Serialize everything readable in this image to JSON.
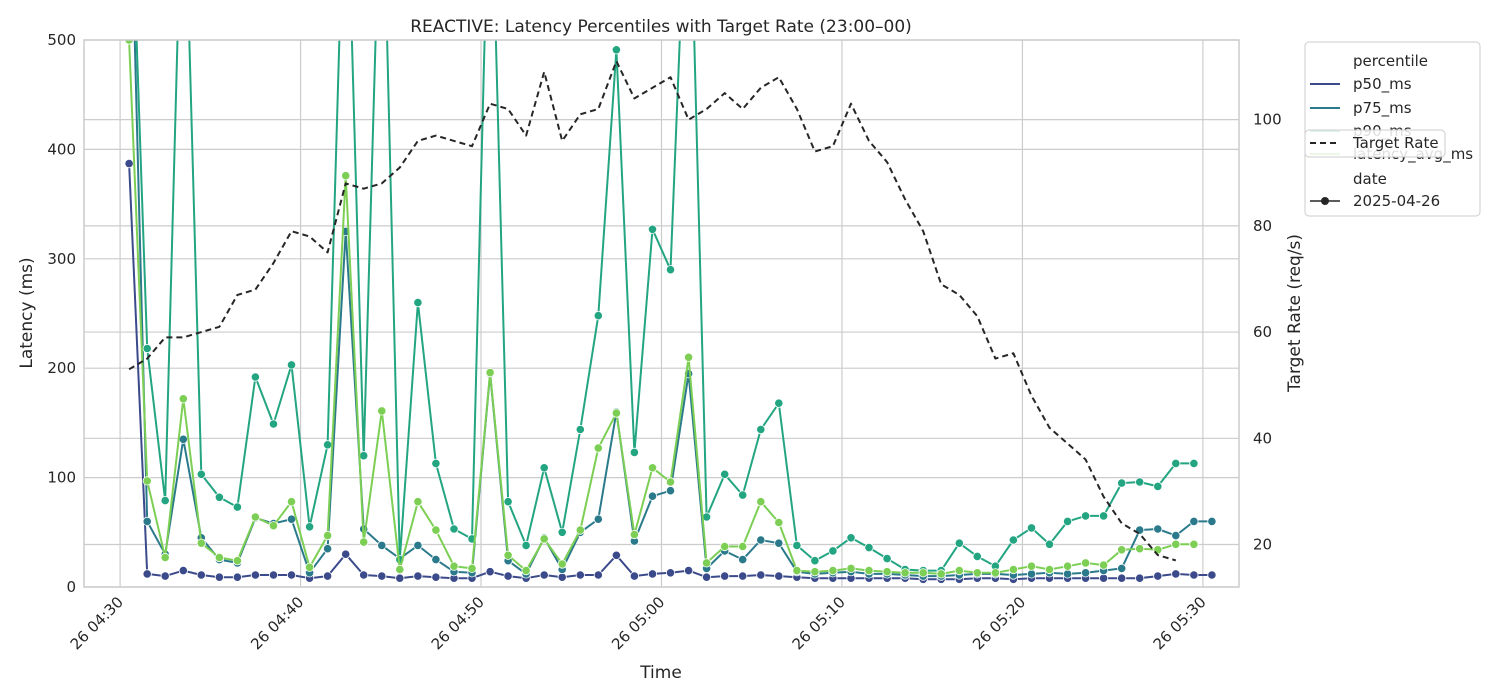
{
  "chart_data": {
    "type": "line",
    "title": "REACTIVE: Latency Percentiles with Target Rate (23:00–00)",
    "xlabel": "Time",
    "ylabel": "Latency (ms)",
    "y2label": "Target Rate (req/s)",
    "ylim": [
      0,
      500
    ],
    "y2lim": [
      12,
      115
    ],
    "grid": true,
    "legend_placement": "outside-right",
    "x_start": "2025-04-26 04:30:30",
    "x_step_minutes": 1,
    "x_ticks": [
      "26 04:30",
      "26 04:40",
      "26 04:50",
      "26 05:00",
      "26 05:10",
      "26 05:20",
      "26 05:30"
    ],
    "x_tick_times": [
      "2025-04-26 04:30",
      "2025-04-26 04:40",
      "2025-04-26 04:50",
      "2025-04-26 05:00",
      "2025-04-26 05:10",
      "2025-04-26 05:20",
      "2025-04-26 05:30"
    ],
    "x_range": [
      "2025-04-26 04:28",
      "2025-04-26 05:32"
    ],
    "y_ticks": [
      "0",
      "100",
      "200",
      "300",
      "400",
      "500"
    ],
    "y2_ticks": [
      "20",
      "40",
      "60",
      "80",
      "100"
    ],
    "series": [
      {
        "name": "p50_ms",
        "color": "#3b4a8a",
        "axis": "left",
        "values": [
          387,
          12,
          10,
          15,
          11,
          9,
          9,
          11,
          11,
          11,
          8,
          10,
          30,
          11,
          10,
          8,
          10,
          9,
          8,
          8,
          14,
          10,
          8,
          11,
          9,
          11,
          11,
          29,
          10,
          12,
          13,
          15,
          9,
          10,
          10,
          11,
          10,
          9,
          8,
          8,
          8,
          8,
          8,
          8,
          7,
          7,
          7,
          8,
          8,
          7,
          8,
          8,
          8,
          8,
          8,
          8,
          8,
          10,
          12,
          11,
          11
        ]
      },
      {
        "name": "p75_ms",
        "color": "#2b7a8c",
        "axis": "left",
        "values": [
          700,
          60,
          30,
          135,
          45,
          25,
          22,
          63,
          58,
          62,
          13,
          35,
          325,
          53,
          38,
          26,
          38,
          25,
          14,
          13,
          195,
          24,
          12,
          45,
          16,
          50,
          62,
          160,
          42,
          83,
          88,
          195,
          17,
          33,
          25,
          43,
          40,
          14,
          12,
          13,
          14,
          12,
          12,
          11,
          10,
          10,
          11,
          12,
          12,
          11,
          12,
          13,
          12,
          13,
          15,
          17,
          52,
          53,
          47,
          60,
          60
        ]
      },
      {
        "name": "p90_ms",
        "color": "#23a582",
        "axis": "left",
        "values": [
          700,
          218,
          79,
          700,
          103,
          82,
          73,
          192,
          149,
          203,
          55,
          130,
          700,
          120,
          700,
          25,
          260,
          113,
          53,
          44,
          700,
          78,
          38,
          109,
          50,
          144,
          248,
          491,
          123,
          327,
          290,
          700,
          64,
          103,
          84,
          144,
          168,
          38,
          24,
          33,
          45,
          36,
          26,
          16,
          15,
          15,
          40,
          28,
          19,
          43,
          54,
          39,
          60,
          65,
          65,
          95,
          96,
          92,
          113,
          113
        ]
      },
      {
        "name": "latency_avg_ms",
        "color": "#7ccf54",
        "axis": "left",
        "values": [
          500,
          97,
          27,
          172,
          40,
          27,
          24,
          64,
          56,
          78,
          18,
          47,
          376,
          41,
          161,
          16,
          78,
          52,
          19,
          17,
          196,
          29,
          15,
          44,
          21,
          52,
          127,
          159,
          48,
          109,
          96,
          210,
          22,
          37,
          37,
          78,
          59,
          15,
          14,
          15,
          17,
          15,
          14,
          13,
          13,
          12,
          15,
          13,
          13,
          16,
          19,
          16,
          19,
          22,
          20,
          34,
          35,
          34,
          39,
          39
        ]
      },
      {
        "name": "Target Rate",
        "color": "#262626",
        "dashed": true,
        "axis": "right",
        "values": [
          53,
          55,
          59,
          59,
          60,
          61,
          67,
          68,
          73,
          79,
          78,
          75,
          88,
          87,
          88,
          91,
          96,
          97,
          96,
          95,
          103,
          102,
          97,
          109,
          96,
          101,
          102,
          111,
          104,
          106,
          108,
          100,
          102,
          105,
          102,
          106,
          108,
          102,
          94,
          95,
          103,
          96,
          92,
          85,
          79,
          69,
          67,
          63,
          55,
          56,
          48,
          42,
          39,
          36,
          29,
          24,
          22,
          18,
          17
        ]
      }
    ],
    "legend": {
      "title": "percentile",
      "items": [
        "p50_ms",
        "p75_ms",
        "p90_ms",
        "latency_avg_ms"
      ],
      "target_label": "Target Rate",
      "date_title": "date",
      "date_label": "2025-04-26"
    }
  }
}
